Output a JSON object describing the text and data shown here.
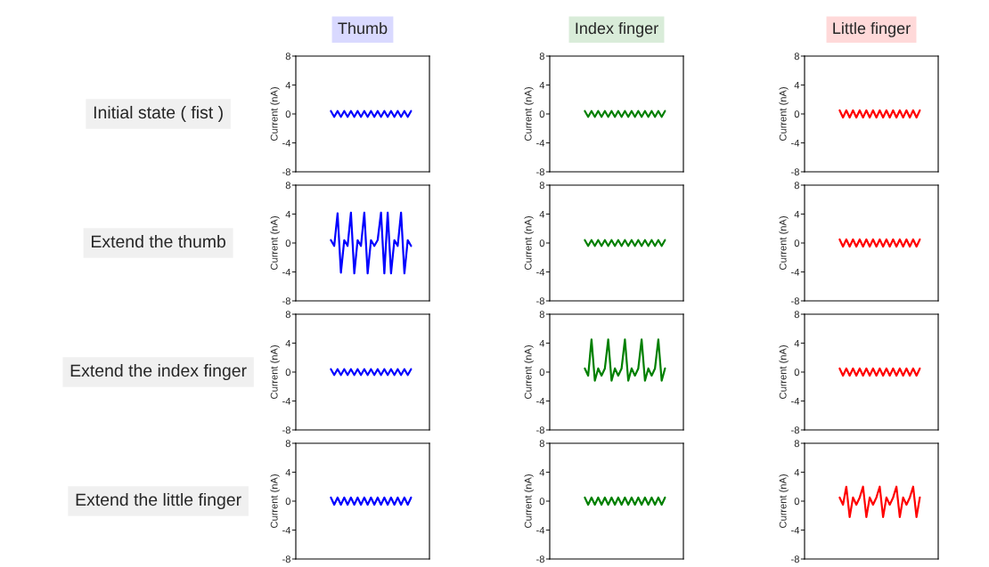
{
  "chart_data": [
    {
      "type": "line",
      "title": "Thumb",
      "annotations": [
        "Initial state ( fist )"
      ],
      "ylabel": "Current (nA)",
      "tick_labels": "y",
      "ylim": [
        -8,
        8
      ],
      "yticks": [
        -8,
        -4,
        0,
        4,
        8
      ],
      "categories": [
        null,
        null,
        null,
        null,
        null,
        null,
        null,
        null,
        null,
        null,
        null,
        null,
        null,
        null,
        null,
        null,
        null,
        null,
        null,
        null,
        null,
        null,
        null,
        null,
        null,
        null,
        null,
        null,
        null,
        null,
        null,
        null,
        null,
        null,
        null,
        null,
        null,
        null,
        null,
        null
      ],
      "series": [
        {
          "color": "#0000ff",
          "values": [
            null,
            null,
            null,
            null,
            null,
            null,
            null,
            null,
            null,
            null,
            0.4,
            -0.4,
            0.4,
            -0.4,
            0.4,
            -0.4,
            0.4,
            -0.4,
            0.4,
            -0.4,
            0.4,
            -0.4,
            0.4,
            -0.4,
            0.4,
            -0.4,
            0.4,
            -0.4,
            0.4,
            -0.4,
            0.4,
            -0.4,
            0.4,
            -0.4,
            0.4,
            null,
            null,
            null,
            null,
            null
          ]
        }
      ]
    },
    {
      "type": "line",
      "title": "Index finger",
      "ylabel": "Current (nA)",
      "tick_labels": "y",
      "ylim": [
        -8,
        8
      ],
      "yticks": [
        -8,
        -4,
        0,
        4,
        8
      ],
      "categories": [
        null,
        null,
        null,
        null,
        null,
        null,
        null,
        null,
        null,
        null,
        null,
        null,
        null,
        null,
        null,
        null,
        null,
        null,
        null,
        null,
        null,
        null,
        null,
        null,
        null,
        null,
        null,
        null,
        null,
        null,
        null,
        null,
        null,
        null,
        null,
        null,
        null,
        null,
        null,
        null
      ],
      "series": [
        {
          "color": "#008000",
          "values": [
            null,
            null,
            null,
            null,
            null,
            null,
            null,
            null,
            null,
            null,
            0.4,
            -0.4,
            0.4,
            -0.4,
            0.4,
            -0.4,
            0.4,
            -0.4,
            0.4,
            -0.4,
            0.4,
            -0.4,
            0.4,
            -0.4,
            0.4,
            -0.4,
            0.4,
            -0.4,
            0.4,
            -0.4,
            0.4,
            -0.4,
            0.4,
            -0.4,
            0.4,
            null,
            null,
            null,
            null,
            null
          ]
        }
      ]
    },
    {
      "type": "line",
      "title": "Little finger",
      "ylabel": "Current (nA)",
      "tick_labels": "y",
      "ylim": [
        -8,
        8
      ],
      "yticks": [
        -8,
        -4,
        0,
        4,
        8
      ],
      "categories": [
        null,
        null,
        null,
        null,
        null,
        null,
        null,
        null,
        null,
        null,
        null,
        null,
        null,
        null,
        null,
        null,
        null,
        null,
        null,
        null,
        null,
        null,
        null,
        null,
        null,
        null,
        null,
        null,
        null,
        null,
        null,
        null,
        null,
        null,
        null,
        null,
        null,
        null,
        null,
        null
      ],
      "series": [
        {
          "color": "#ff0000",
          "values": [
            null,
            null,
            null,
            null,
            null,
            null,
            null,
            null,
            null,
            null,
            0.5,
            -0.5,
            0.5,
            -0.5,
            0.5,
            -0.5,
            0.5,
            -0.5,
            0.5,
            -0.5,
            0.5,
            -0.5,
            0.5,
            -0.5,
            0.5,
            -0.5,
            0.5,
            -0.5,
            0.5,
            -0.5,
            0.5,
            -0.5,
            0.5,
            -0.5,
            0.5,
            null,
            null,
            null,
            null,
            null
          ]
        }
      ]
    },
    {
      "type": "line",
      "annotations": [
        "Extend the thumb"
      ],
      "ylabel": "Current (nA)",
      "tick_labels": "y",
      "ylim": [
        -8,
        8
      ],
      "yticks": [
        -8,
        -4,
        0,
        4,
        8
      ],
      "categories": [
        null,
        null,
        null,
        null,
        null,
        null,
        null,
        null,
        null,
        null,
        null,
        null,
        null,
        null,
        null,
        null,
        null,
        null,
        null,
        null,
        null,
        null,
        null,
        null,
        null,
        null,
        null,
        null,
        null,
        null,
        null,
        null,
        null,
        null,
        null,
        null,
        null,
        null,
        null,
        null
      ],
      "series": [
        {
          "color": "#0000ff",
          "values": [
            null,
            null,
            null,
            null,
            null,
            null,
            null,
            null,
            null,
            null,
            0.4,
            -0.4,
            4.1,
            -4.1,
            0.4,
            -0.4,
            4.2,
            -4.2,
            0.4,
            -0.4,
            4.2,
            -4.2,
            0.4,
            -0.4,
            0.4,
            4.2,
            -4.2,
            4.2,
            -4.2,
            0.4,
            -0.4,
            4.2,
            -4.2,
            0.4,
            -0.4,
            null,
            null,
            null,
            null,
            null
          ]
        }
      ]
    },
    {
      "type": "line",
      "ylabel": "Current (nA)",
      "tick_labels": "y",
      "ylim": [
        -8,
        8
      ],
      "yticks": [
        -8,
        -4,
        0,
        4,
        8
      ],
      "categories": [
        null,
        null,
        null,
        null,
        null,
        null,
        null,
        null,
        null,
        null,
        null,
        null,
        null,
        null,
        null,
        null,
        null,
        null,
        null,
        null,
        null,
        null,
        null,
        null,
        null,
        null,
        null,
        null,
        null,
        null,
        null,
        null,
        null,
        null,
        null,
        null,
        null,
        null,
        null,
        null
      ],
      "series": [
        {
          "color": "#008000",
          "values": [
            null,
            null,
            null,
            null,
            null,
            null,
            null,
            null,
            null,
            null,
            0.4,
            -0.4,
            0.4,
            -0.4,
            0.4,
            -0.4,
            0.4,
            -0.4,
            0.4,
            -0.4,
            0.4,
            -0.4,
            0.4,
            -0.4,
            0.4,
            -0.4,
            0.4,
            -0.4,
            0.4,
            -0.4,
            0.4,
            -0.4,
            0.4,
            -0.4,
            0.4,
            null,
            null,
            null,
            null,
            null
          ]
        }
      ]
    },
    {
      "type": "line",
      "ylabel": "Current (nA)",
      "tick_labels": "y",
      "ylim": [
        -8,
        8
      ],
      "yticks": [
        -8,
        -4,
        0,
        4,
        8
      ],
      "categories": [
        null,
        null,
        null,
        null,
        null,
        null,
        null,
        null,
        null,
        null,
        null,
        null,
        null,
        null,
        null,
        null,
        null,
        null,
        null,
        null,
        null,
        null,
        null,
        null,
        null,
        null,
        null,
        null,
        null,
        null,
        null,
        null,
        null,
        null,
        null,
        null,
        null,
        null,
        null,
        null
      ],
      "series": [
        {
          "color": "#ff0000",
          "values": [
            null,
            null,
            null,
            null,
            null,
            null,
            null,
            null,
            null,
            null,
            0.5,
            -0.5,
            0.5,
            -0.5,
            0.5,
            -0.5,
            0.5,
            -0.5,
            0.5,
            -0.5,
            0.5,
            -0.5,
            0.5,
            -0.5,
            0.5,
            -0.5,
            0.5,
            -0.5,
            0.5,
            -0.5,
            0.5,
            -0.5,
            0.5,
            -0.5,
            0.5,
            null,
            null,
            null,
            null,
            null
          ]
        }
      ]
    },
    {
      "type": "line",
      "annotations": [
        "Extend the index finger"
      ],
      "ylabel": "Current (nA)",
      "tick_labels": "y",
      "ylim": [
        -8,
        8
      ],
      "yticks": [
        -8,
        -4,
        0,
        4,
        8
      ],
      "categories": [
        null,
        null,
        null,
        null,
        null,
        null,
        null,
        null,
        null,
        null,
        null,
        null,
        null,
        null,
        null,
        null,
        null,
        null,
        null,
        null,
        null,
        null,
        null,
        null,
        null,
        null,
        null,
        null,
        null,
        null,
        null,
        null,
        null,
        null,
        null,
        null,
        null,
        null,
        null,
        null
      ],
      "series": [
        {
          "color": "#0000ff",
          "values": [
            null,
            null,
            null,
            null,
            null,
            null,
            null,
            null,
            null,
            null,
            0.4,
            -0.4,
            0.4,
            -0.4,
            0.4,
            -0.4,
            0.4,
            -0.4,
            0.4,
            -0.4,
            0.4,
            -0.4,
            0.4,
            -0.4,
            0.4,
            -0.4,
            0.4,
            -0.4,
            0.4,
            -0.4,
            0.4,
            -0.4,
            0.4,
            -0.4,
            0.4,
            null,
            null,
            null,
            null,
            null
          ]
        }
      ]
    },
    {
      "type": "line",
      "ylabel": "Current (nA)",
      "tick_labels": "y",
      "ylim": [
        -8,
        8
      ],
      "yticks": [
        -8,
        -4,
        0,
        4,
        8
      ],
      "categories": [
        null,
        null,
        null,
        null,
        null,
        null,
        null,
        null,
        null,
        null,
        null,
        null,
        null,
        null,
        null,
        null,
        null,
        null,
        null,
        null,
        null,
        null,
        null,
        null,
        null,
        null,
        null,
        null,
        null,
        null,
        null,
        null,
        null,
        null,
        null,
        null,
        null,
        null,
        null,
        null
      ],
      "series": [
        {
          "color": "#008000",
          "values": [
            null,
            null,
            null,
            null,
            null,
            null,
            null,
            null,
            null,
            null,
            0.5,
            -0.5,
            4.5,
            -1.2,
            0.5,
            -0.5,
            0.5,
            4.5,
            -1.2,
            0.5,
            -0.5,
            0.5,
            4.5,
            -1.2,
            0.5,
            -0.5,
            0.5,
            4.5,
            -1.2,
            0.5,
            -0.5,
            0.5,
            4.5,
            -1.2,
            0.5,
            null,
            null,
            null,
            null,
            null
          ]
        }
      ]
    },
    {
      "type": "line",
      "ylabel": "Current (nA)",
      "tick_labels": "y",
      "ylim": [
        -8,
        8
      ],
      "yticks": [
        -8,
        -4,
        0,
        4,
        8
      ],
      "categories": [
        null,
        null,
        null,
        null,
        null,
        null,
        null,
        null,
        null,
        null,
        null,
        null,
        null,
        null,
        null,
        null,
        null,
        null,
        null,
        null,
        null,
        null,
        null,
        null,
        null,
        null,
        null,
        null,
        null,
        null,
        null,
        null,
        null,
        null,
        null,
        null,
        null,
        null,
        null,
        null
      ],
      "series": [
        {
          "color": "#ff0000",
          "values": [
            null,
            null,
            null,
            null,
            null,
            null,
            null,
            null,
            null,
            null,
            0.5,
            -0.5,
            0.5,
            -0.5,
            0.5,
            -0.5,
            0.5,
            -0.5,
            0.5,
            -0.5,
            0.5,
            -0.5,
            0.5,
            -0.5,
            0.5,
            -0.5,
            0.5,
            -0.5,
            0.5,
            -0.5,
            0.5,
            -0.5,
            0.5,
            -0.5,
            0.5,
            null,
            null,
            null,
            null,
            null
          ]
        }
      ]
    },
    {
      "type": "line",
      "annotations": [
        "Extend the little finger"
      ],
      "ylabel": "Current (nA)",
      "tick_labels": "y",
      "ylim": [
        -8,
        8
      ],
      "yticks": [
        -8,
        -4,
        0,
        4,
        8
      ],
      "categories": [
        null,
        null,
        null,
        null,
        null,
        null,
        null,
        null,
        null,
        null,
        null,
        null,
        null,
        null,
        null,
        null,
        null,
        null,
        null,
        null,
        null,
        null,
        null,
        null,
        null,
        null,
        null,
        null,
        null,
        null,
        null,
        null,
        null,
        null,
        null,
        null,
        null,
        null,
        null,
        null
      ],
      "series": [
        {
          "color": "#0000ff",
          "values": [
            null,
            null,
            null,
            null,
            null,
            null,
            null,
            null,
            null,
            null,
            0.5,
            -0.5,
            0.5,
            -0.5,
            0.5,
            -0.5,
            0.5,
            -0.5,
            0.5,
            -0.5,
            0.5,
            -0.5,
            0.5,
            -0.5,
            0.5,
            -0.5,
            0.5,
            -0.5,
            0.5,
            -0.5,
            0.5,
            -0.5,
            0.5,
            -0.5,
            0.5,
            null,
            null,
            null,
            null,
            null
          ]
        }
      ]
    },
    {
      "type": "line",
      "ylabel": "Current (nA)",
      "tick_labels": "y",
      "ylim": [
        -8,
        8
      ],
      "yticks": [
        -8,
        -4,
        0,
        4,
        8
      ],
      "categories": [
        null,
        null,
        null,
        null,
        null,
        null,
        null,
        null,
        null,
        null,
        null,
        null,
        null,
        null,
        null,
        null,
        null,
        null,
        null,
        null,
        null,
        null,
        null,
        null,
        null,
        null,
        null,
        null,
        null,
        null,
        null,
        null,
        null,
        null,
        null,
        null,
        null,
        null,
        null,
        null
      ],
      "series": [
        {
          "color": "#008000",
          "values": [
            null,
            null,
            null,
            null,
            null,
            null,
            null,
            null,
            null,
            null,
            0.5,
            -0.5,
            0.5,
            -0.5,
            0.5,
            -0.5,
            0.5,
            -0.5,
            0.5,
            -0.5,
            0.5,
            -0.5,
            0.5,
            -0.5,
            0.5,
            -0.5,
            0.5,
            -0.5,
            0.5,
            -0.5,
            0.5,
            -0.5,
            0.5,
            -0.5,
            0.5,
            null,
            null,
            null,
            null,
            null
          ]
        }
      ]
    },
    {
      "type": "line",
      "ylabel": "Current (nA)",
      "tick_labels": "y",
      "ylim": [
        -8,
        8
      ],
      "yticks": [
        -8,
        -4,
        0,
        4,
        8
      ],
      "categories": [
        null,
        null,
        null,
        null,
        null,
        null,
        null,
        null,
        null,
        null,
        null,
        null,
        null,
        null,
        null,
        null,
        null,
        null,
        null,
        null,
        null,
        null,
        null,
        null,
        null,
        null,
        null,
        null,
        null,
        null,
        null,
        null,
        null,
        null,
        null,
        null,
        null,
        null,
        null,
        null
      ],
      "series": [
        {
          "color": "#ff0000",
          "values": [
            null,
            null,
            null,
            null,
            null,
            null,
            null,
            null,
            null,
            null,
            0.5,
            -0.5,
            2.0,
            -2.2,
            0.5,
            -0.5,
            0.5,
            2.0,
            -2.2,
            0.5,
            -0.5,
            0.5,
            2.0,
            -2.2,
            0.5,
            -0.5,
            0.5,
            2.0,
            -2.2,
            0.5,
            -0.5,
            0.5,
            2.0,
            -2.2,
            0.5,
            null,
            null,
            null,
            null,
            null
          ]
        }
      ]
    }
  ]
}
